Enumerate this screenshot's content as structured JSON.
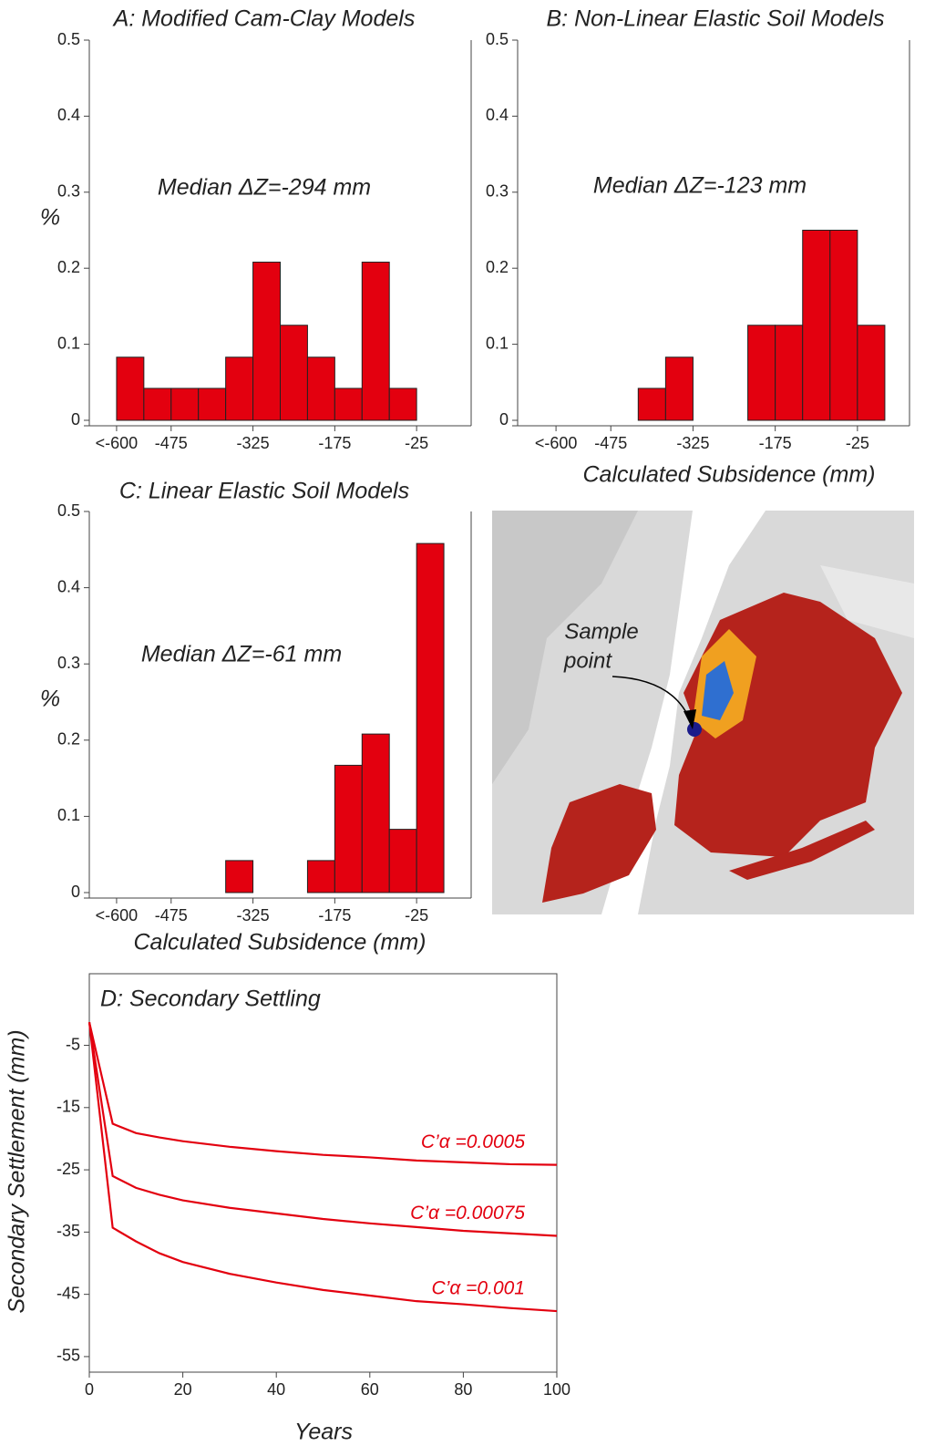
{
  "chart_data": [
    {
      "type": "histogram",
      "title": "A: Modified Cam-Clay Models",
      "annotation": "Median ΔZ=-294 mm",
      "ylabel": "%",
      "bins": [
        -575,
        -525,
        -475,
        -425,
        -375,
        -325,
        -275,
        -225,
        -175,
        -125,
        -75,
        -25
      ],
      "values": [
        0.083,
        0.042,
        0.042,
        0.042,
        0.083,
        0.208,
        0.125,
        0.083,
        0.042,
        0.208,
        0.042
      ],
      "color": "#e3000f",
      "xlim": [
        -625,
        75
      ],
      "ylim": [
        0,
        0.5
      ],
      "xticks": [
        {
          "value": -575,
          "label": "<-600"
        },
        -475,
        -325,
        -175,
        -25
      ],
      "yticks": [
        0,
        0.1,
        0.2,
        0.3,
        0.4,
        0.5
      ]
    },
    {
      "type": "histogram",
      "title": "B: Non-Linear Elastic Soil Models",
      "annotation": "Median ΔZ=-123 mm",
      "xlabel": "Calculated Subsidence (mm)",
      "bins": [
        -425,
        -375,
        -325,
        -275,
        -225,
        -175,
        -125,
        -75,
        -25,
        25
      ],
      "values": [
        0.042,
        0.083,
        0,
        0,
        0.125,
        0.125,
        0.25,
        0.25,
        0.125
      ],
      "color": "#e3000f",
      "xlim": [
        -645,
        70
      ],
      "ylim": [
        0,
        0.5
      ],
      "xticks": [
        {
          "value": -575,
          "label": "<-600"
        },
        -475,
        -325,
        -175,
        -25
      ],
      "yticks": [
        0,
        0.1,
        0.2,
        0.3,
        0.4,
        0.5
      ]
    },
    {
      "type": "histogram",
      "title": "C: Linear Elastic Soil Models",
      "annotation": "Median ΔZ=-61 mm",
      "ylabel": "%",
      "xlabel": "Calculated Subsidence (mm)",
      "bins": [
        -375,
        -325,
        -275,
        -225,
        -175,
        -125,
        -75,
        -25,
        25
      ],
      "values": [
        0.042,
        0,
        0,
        0.042,
        0.167,
        0.208,
        0.083,
        0.458
      ],
      "color": "#e3000f",
      "xlim": [
        -625,
        75
      ],
      "ylim": [
        0,
        0.5
      ],
      "xticks": [
        {
          "value": -575,
          "label": "<-600"
        },
        -475,
        -325,
        -175,
        -25
      ],
      "yticks": [
        0,
        0.1,
        0.2,
        0.3,
        0.4,
        0.5
      ]
    },
    {
      "type": "line",
      "title": "D: Secondary Settling",
      "xlabel": "Years",
      "ylabel": "Secondary Settlement (mm)",
      "x": [
        0,
        5,
        10,
        15,
        20,
        30,
        40,
        50,
        60,
        70,
        80,
        90,
        100
      ],
      "series": [
        {
          "name": "C’α =0.0005",
          "color": "#e3000f",
          "values": [
            -1.3,
            -17.6,
            -19.1,
            -19.8,
            -20.4,
            -21.3,
            -22,
            -22.6,
            -23,
            -23.5,
            -23.8,
            -24.1,
            -24.2
          ]
        },
        {
          "name": "C’α =0.00075",
          "color": "#e3000f",
          "values": [
            -1.3,
            -26,
            -27.9,
            -29,
            -29.9,
            -31.1,
            -32,
            -32.9,
            -33.6,
            -34.2,
            -34.8,
            -35.2,
            -35.6
          ]
        },
        {
          "name": "C’α =0.001",
          "color": "#e3000f",
          "values": [
            -1.3,
            -34.3,
            -36.5,
            -38.4,
            -39.8,
            -41.7,
            -43.1,
            -44.3,
            -45.2,
            -46.1,
            -46.6,
            -47.2,
            -47.7
          ]
        }
      ],
      "xlim": [
        0,
        100
      ],
      "ylim": [
        -57.5,
        6.5
      ],
      "xticks": [
        0,
        20,
        40,
        60,
        80,
        100
      ],
      "yticks": [
        -5,
        -15,
        -25,
        -35,
        -45,
        -55
      ]
    }
  ],
  "map": {
    "label_lines": [
      "Sample",
      "point"
    ]
  }
}
